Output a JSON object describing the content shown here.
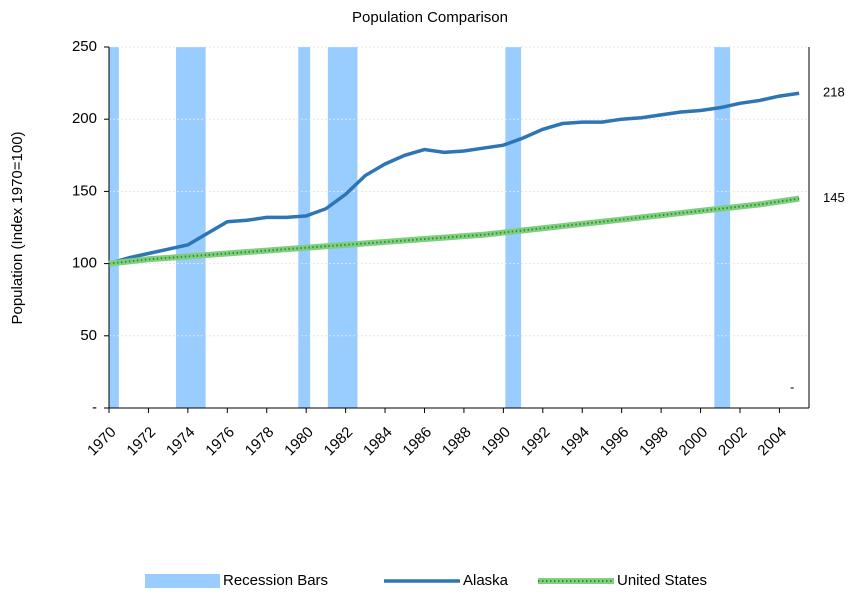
{
  "chart_data": {
    "type": "line",
    "title": "Population Comparison",
    "y_label": "Population (Index 1970=100)",
    "x": [
      1970,
      1971,
      1972,
      1973,
      1974,
      1975,
      1976,
      1977,
      1978,
      1979,
      1980,
      1981,
      1982,
      1983,
      1984,
      1985,
      1986,
      1987,
      1988,
      1989,
      1990,
      1991,
      1992,
      1993,
      1994,
      1995,
      1996,
      1997,
      1998,
      1999,
      2000,
      2001,
      2002,
      2003,
      2004,
      2005
    ],
    "xlim": [
      1970,
      2005.5
    ],
    "xticks": [
      1970,
      1972,
      1974,
      1976,
      1978,
      1980,
      1982,
      1984,
      1986,
      1988,
      1990,
      1992,
      1994,
      1996,
      1998,
      2000,
      2002,
      2004
    ],
    "ylim": [
      0,
      250
    ],
    "yticks": [
      {
        "value": 0,
        "label": "-"
      },
      50,
      100,
      150,
      200,
      250
    ],
    "grid": true,
    "annotation": "-",
    "recessions": {
      "name": "Recession Bars",
      "color": "#99ccff",
      "ranges": [
        [
          1970,
          1970.5
        ],
        [
          1973.4,
          1974.9
        ],
        [
          1979.6,
          1980.2
        ],
        [
          1981.1,
          1982.6
        ],
        [
          1990.1,
          1990.9
        ],
        [
          2000.7,
          2001.5
        ]
      ]
    },
    "series": [
      {
        "name": "Alaska",
        "color": "#2e75b6",
        "values": [
          100,
          104,
          107,
          110,
          113,
          121,
          129,
          130,
          132,
          132,
          133,
          138,
          148,
          161,
          169,
          175,
          179,
          177,
          178,
          180,
          182,
          187,
          193,
          197,
          198,
          198,
          200,
          201,
          203,
          205,
          206,
          208,
          211,
          213,
          216,
          218
        ]
      },
      {
        "name": "United States",
        "color": "#7fcf7f",
        "values": [
          100,
          101.5,
          103,
          104,
          105,
          106,
          107,
          108,
          109,
          110,
          111,
          112,
          113,
          114,
          115,
          116,
          117,
          118,
          119,
          120,
          121.5,
          123,
          124.5,
          126,
          127.5,
          129,
          130.5,
          132,
          133.5,
          135,
          136.5,
          138,
          139.5,
          141,
          143,
          145
        ]
      }
    ]
  }
}
